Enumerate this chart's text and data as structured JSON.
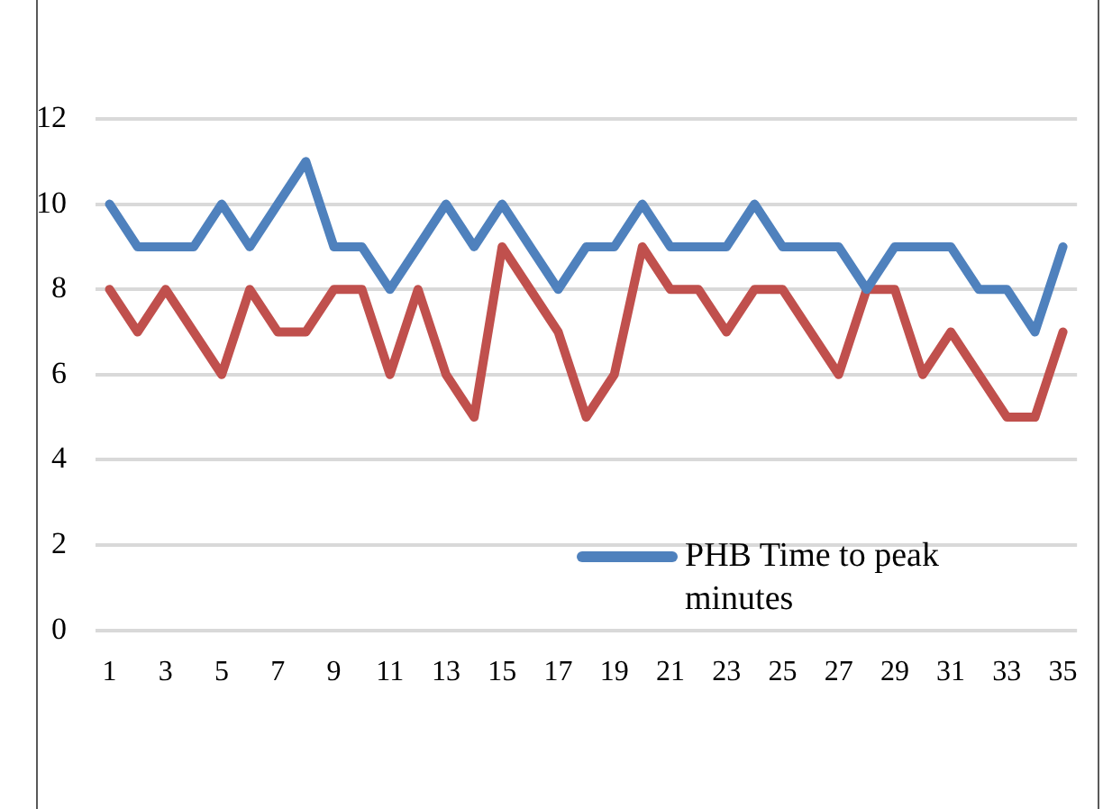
{
  "chart_data": {
    "type": "line",
    "x": [
      1,
      2,
      3,
      4,
      5,
      6,
      7,
      8,
      9,
      10,
      11,
      12,
      13,
      14,
      15,
      16,
      17,
      18,
      19,
      20,
      21,
      22,
      23,
      24,
      25,
      26,
      27,
      28,
      29,
      30,
      31,
      32,
      33,
      34,
      35
    ],
    "xlim": [
      0.5,
      35.5
    ],
    "xticks": [
      1,
      3,
      5,
      7,
      9,
      11,
      13,
      15,
      17,
      19,
      21,
      23,
      25,
      27,
      29,
      31,
      33,
      35
    ],
    "series": [
      {
        "name": "PHB Time to peak minutes",
        "color": "#4f81bd",
        "values": [
          10,
          9,
          9,
          9,
          10,
          9,
          10,
          11,
          9,
          9,
          8,
          9,
          10,
          9,
          10,
          9,
          8,
          9,
          9,
          10,
          9,
          9,
          9,
          10,
          9,
          9,
          9,
          8,
          9,
          9,
          9,
          8,
          8,
          7,
          9
        ]
      },
      {
        "color": "#c0504d",
        "values": [
          8,
          7,
          8,
          7,
          6,
          8,
          7,
          7,
          8,
          8,
          6,
          8,
          6,
          5,
          9,
          8,
          7,
          5,
          6,
          9,
          8,
          8,
          7,
          8,
          8,
          7,
          6,
          8,
          8,
          6,
          7,
          6,
          5,
          5,
          7
        ]
      }
    ],
    "ylim": [
      0,
      12
    ],
    "yticks": [
      0,
      2,
      4,
      6,
      8,
      10,
      12
    ],
    "grid": "y",
    "legend": "bottom right",
    "marker": "none",
    "line_style": "solid"
  }
}
